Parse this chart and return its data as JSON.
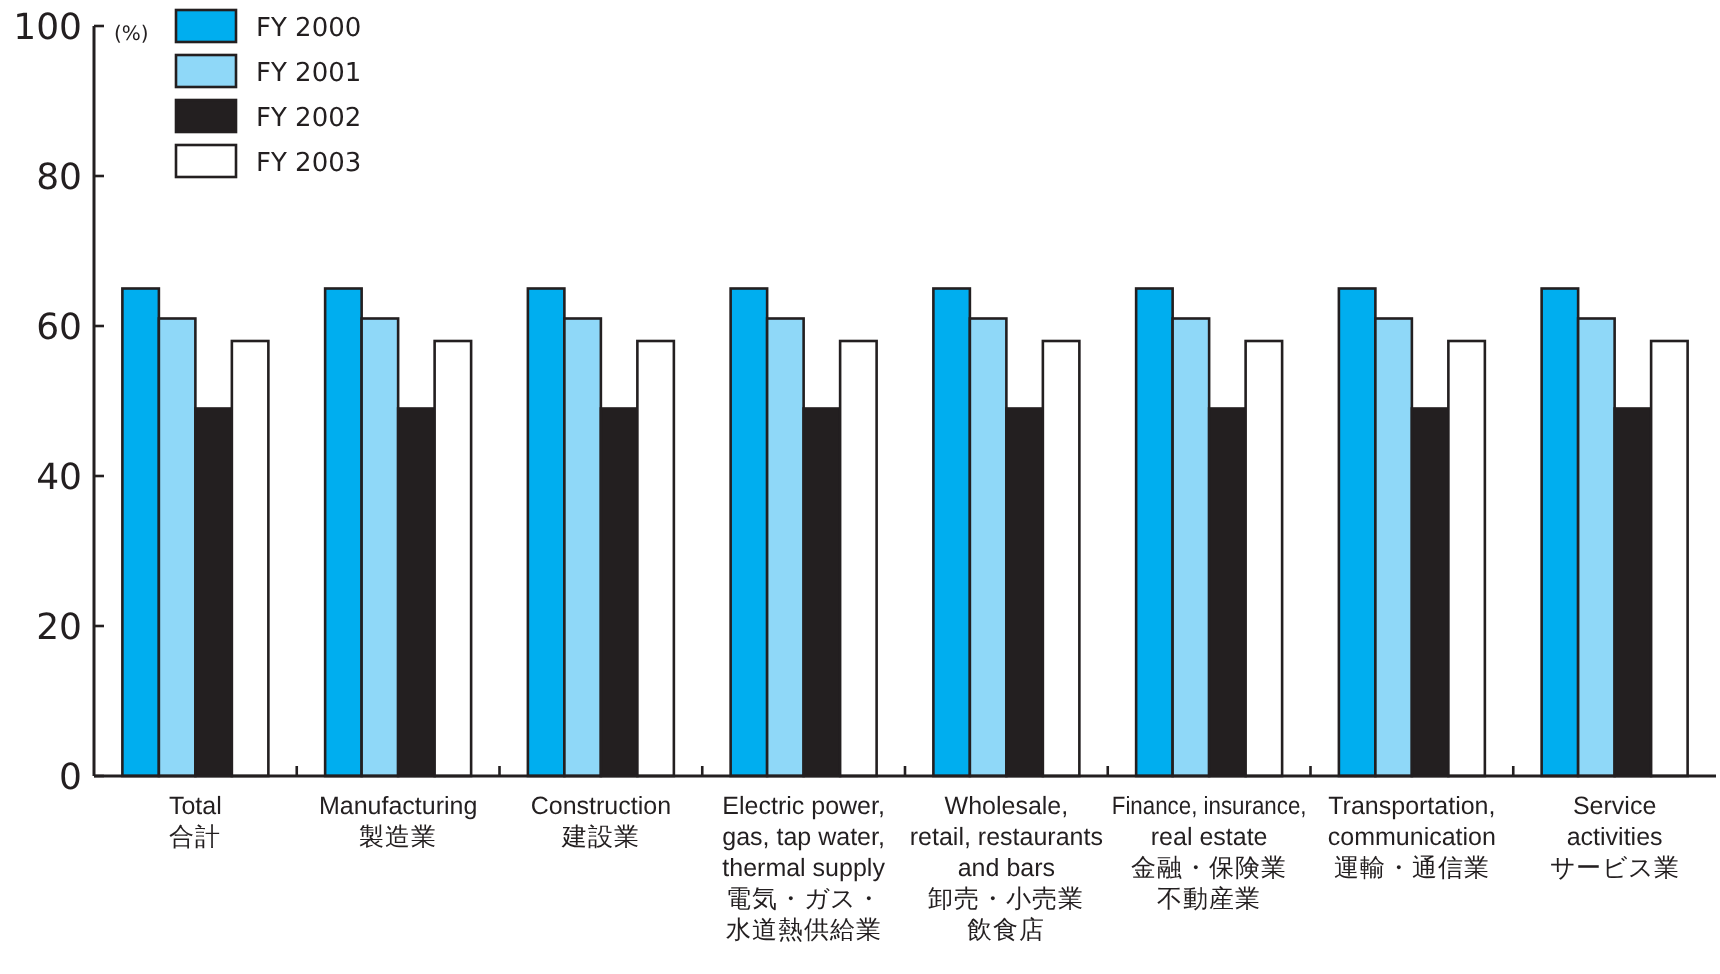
{
  "chart_data": {
    "type": "bar",
    "ylabel": "(%)",
    "categories": [
      "Total\n合計",
      "Manufacturing\n製造業",
      "Construction\n建設業",
      "Electric power,\ngas, tap water,\nthermal supply\n電気・ガス・水道熱供給業",
      "Wholesale,\nretail, restaurants\nand bars\n卸売・小売業飲食店",
      "Finance, insurance,\nreal estate\n金融・保険業不動産業",
      "Transportation,\ncommunication\n運輸・通信業",
      "Service\nactivities\nサービス業"
    ],
    "series": [
      {
        "name": "FY 2000",
        "color": "#00aeef",
        "values": [
          65,
          65,
          65,
          65,
          65,
          65,
          65,
          65
        ]
      },
      {
        "name": "FY 2001",
        "color": "#8fd8f8",
        "values": [
          61,
          61,
          61,
          61,
          61,
          61,
          61,
          61
        ]
      },
      {
        "name": "FY 2002",
        "color": "#231f20",
        "values": [
          49,
          49,
          49,
          49,
          49,
          49,
          49,
          49
        ]
      },
      {
        "name": "FY 2003",
        "color": "#ffffff",
        "values": [
          58,
          58,
          58,
          58,
          58,
          58,
          58,
          58
        ]
      }
    ],
    "ylim": [
      0,
      100
    ],
    "yticks": [
      0,
      20,
      40,
      60,
      80,
      100
    ],
    "legend": "top left"
  }
}
